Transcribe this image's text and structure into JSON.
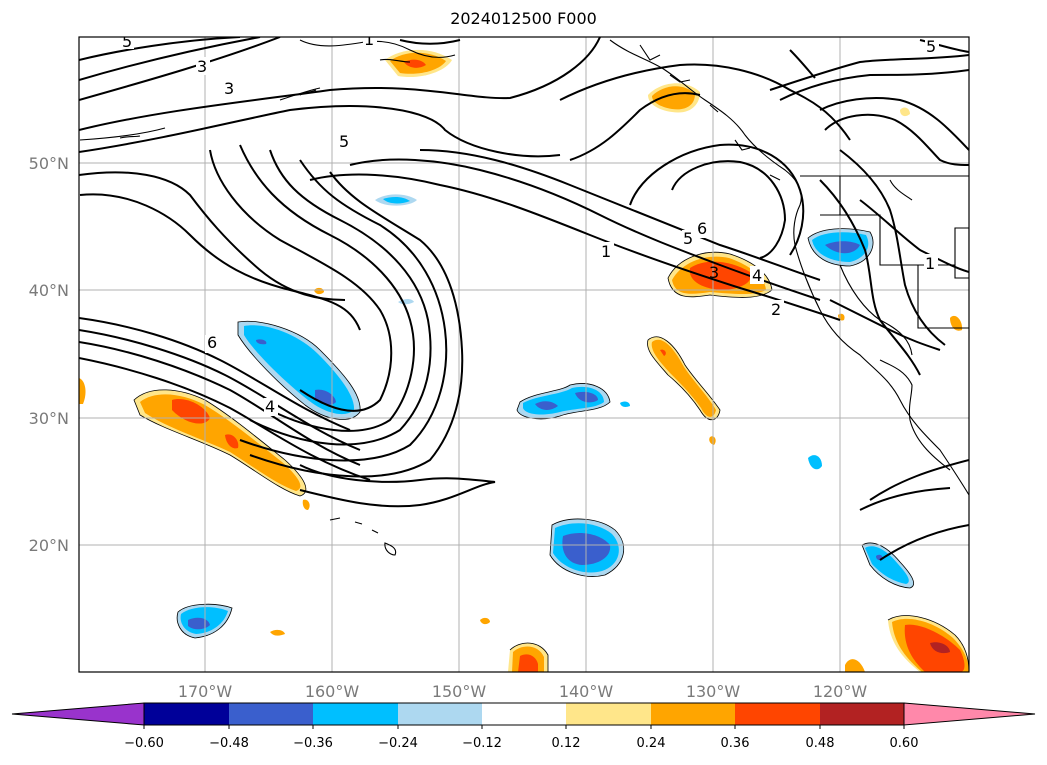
{
  "title": "2024012500 F000",
  "lat_labels": [
    "50°N",
    "40°N",
    "30°N",
    "20°N"
  ],
  "lon_labels": [
    "170°W",
    "160°W",
    "150°W",
    "140°W",
    "130°W",
    "120°W"
  ],
  "colorbar": {
    "ticks": [
      "−0.60",
      "−0.48",
      "−0.36",
      "−0.24",
      "−0.12",
      "0.12",
      "0.24",
      "0.36",
      "0.48",
      "0.60"
    ],
    "colors": [
      "#9933cc",
      "#000099",
      "#3a5fcd",
      "#00bfff",
      "#add8f0",
      "#ffffff",
      "#ffe68a",
      "#ffa500",
      "#ff4500",
      "#b22222",
      "#ff88aa"
    ]
  },
  "contour_labels": [
    "5",
    "3",
    "3",
    "5",
    "6",
    "4",
    "1",
    "5",
    "6",
    "3",
    "4",
    "2",
    "1",
    "5",
    "1"
  ]
}
